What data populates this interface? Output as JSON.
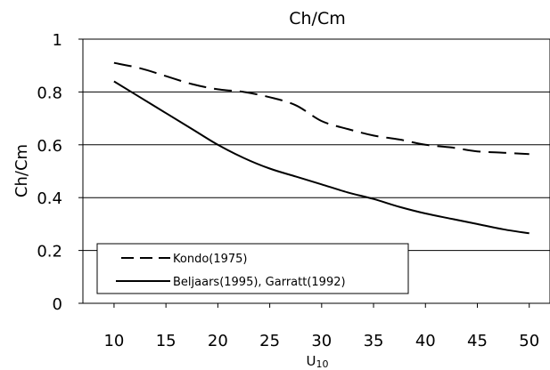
{
  "chart_data": {
    "type": "line",
    "title": "Ch/Cm",
    "xlabel": "U10",
    "ylabel": "Ch/Cm",
    "xlim": [
      7,
      52
    ],
    "ylim": [
      0,
      1
    ],
    "x_ticks": [
      10,
      15,
      20,
      25,
      30,
      35,
      40,
      45,
      50
    ],
    "y_ticks": [
      0,
      0.2,
      0.4,
      0.6,
      0.8,
      1
    ],
    "x_tick_labels": [
      "10",
      "15",
      "20",
      "25",
      "30",
      "35",
      "40",
      "45",
      "50"
    ],
    "y_tick_labels": [
      "0",
      "0.2",
      "0.4",
      "0.6",
      "0.8",
      "1"
    ],
    "grid": "horizontal",
    "legend_position": "bottom-left",
    "series": [
      {
        "name": "Kondo(1975)",
        "style": "dashed",
        "color": "#000000",
        "x": [
          10,
          12.5,
          15,
          17.5,
          20,
          22.5,
          25,
          27.5,
          30,
          32.5,
          35,
          37.5,
          40,
          42.5,
          45,
          47.5,
          50
        ],
        "y": [
          0.91,
          0.89,
          0.86,
          0.83,
          0.81,
          0.8,
          0.78,
          0.75,
          0.69,
          0.66,
          0.635,
          0.62,
          0.6,
          0.59,
          0.575,
          0.57,
          0.565
        ]
      },
      {
        "name": "Beljaars(1995), Garratt(1992)",
        "style": "solid",
        "color": "#000000",
        "x": [
          10,
          12.5,
          15,
          17.5,
          20,
          22.5,
          25,
          27.5,
          30,
          32.5,
          35,
          37.5,
          40,
          42.5,
          45,
          47.5,
          50
        ],
        "y": [
          0.84,
          0.78,
          0.72,
          0.66,
          0.6,
          0.55,
          0.51,
          0.48,
          0.45,
          0.42,
          0.395,
          0.365,
          0.34,
          0.32,
          0.3,
          0.28,
          0.265
        ]
      }
    ]
  }
}
